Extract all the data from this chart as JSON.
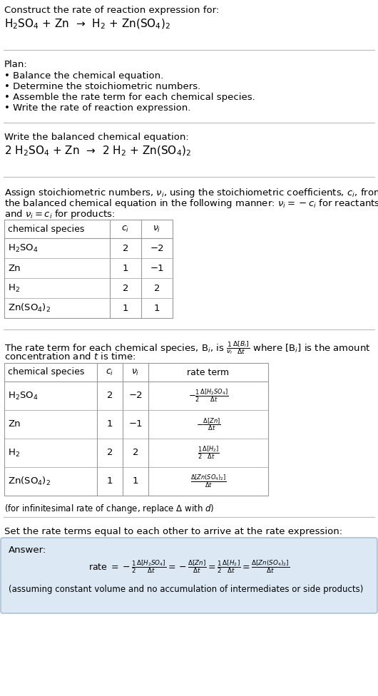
{
  "bg_color": "#ffffff",
  "answer_bg_color": "#dce9f5",
  "answer_border_color": "#a0b8d0",
  "text_color": "#000000",
  "title_text": "Construct the rate of reaction expression for:",
  "reaction_unbalanced": "H$_2$SO$_4$ + Zn  →  H$_2$ + Zn(SO$_4$)$_2$",
  "plan_header": "Plan:",
  "plan_items": [
    "• Balance the chemical equation.",
    "• Determine the stoichiometric numbers.",
    "• Assemble the rate term for each chemical species.",
    "• Write the rate of reaction expression."
  ],
  "balanced_header": "Write the balanced chemical equation:",
  "reaction_balanced": "2 H$_2$SO$_4$ + Zn  →  2 H$_2$ + Zn(SO$_4$)$_2$",
  "stoich_header1": "Assign stoichiometric numbers, $\\nu_i$, using the stoichiometric coefficients, $c_i$, from",
  "stoich_header2": "the balanced chemical equation in the following manner: $\\nu_i = -c_i$ for reactants",
  "stoich_header3": "and $\\nu_i = c_i$ for products:",
  "table1_headers": [
    "chemical species",
    "$c_i$",
    "$\\nu_i$"
  ],
  "table1_rows": [
    [
      "H$_2$SO$_4$",
      "2",
      "−2"
    ],
    [
      "Zn",
      "1",
      "−1"
    ],
    [
      "H$_2$",
      "2",
      "2"
    ],
    [
      "Zn(SO$_4$)$_2$",
      "1",
      "1"
    ]
  ],
  "rate_header1": "The rate term for each chemical species, B$_i$, is $\\frac{1}{\\nu_i}\\frac{\\Delta[B_i]}{\\Delta t}$ where [B$_i$] is the amount",
  "rate_header2": "concentration and $t$ is time:",
  "table2_headers": [
    "chemical species",
    "$c_i$",
    "$\\nu_i$",
    "rate term"
  ],
  "table2_rows": [
    [
      "H$_2$SO$_4$",
      "2",
      "−2",
      "$-\\frac{1}{2}\\frac{\\Delta[H_2SO_4]}{\\Delta t}$"
    ],
    [
      "Zn",
      "1",
      "−1",
      "$-\\frac{\\Delta[Zn]}{\\Delta t}$"
    ],
    [
      "H$_2$",
      "2",
      "2",
      "$\\frac{1}{2}\\frac{\\Delta[H_2]}{\\Delta t}$"
    ],
    [
      "Zn(SO$_4$)$_2$",
      "1",
      "1",
      "$\\frac{\\Delta[Zn(SO_4)_2]}{\\Delta t}$"
    ]
  ],
  "infinitesimal_note": "(for infinitesimal rate of change, replace Δ with $d$)",
  "set_header": "Set the rate terms equal to each other to arrive at the rate expression:",
  "answer_label": "Answer:",
  "rate_expression": "rate $= -\\frac{1}{2}\\frac{\\Delta[H_2SO_4]}{\\Delta t} = -\\frac{\\Delta[Zn]}{\\Delta t} = \\frac{1}{2}\\frac{\\Delta[H_2]}{\\Delta t} = \\frac{\\Delta[Zn(SO_4)_2]}{\\Delta t}$",
  "assuming_note": "(assuming constant volume and no accumulation of intermediates or side products)"
}
